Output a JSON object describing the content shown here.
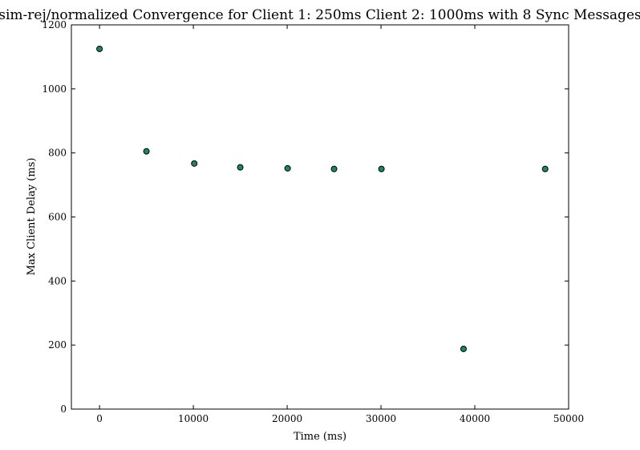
{
  "chart_data": {
    "type": "scatter",
    "title": "sim-rej/normalized Convergence for Client 1: 250ms Client 2: 1000ms with 8 Sync Messages",
    "xlabel": "Time (ms)",
    "ylabel": "Max Client Delay (ms)",
    "xlim": [
      -3000,
      50000
    ],
    "ylim": [
      0,
      1200
    ],
    "x_ticks": [
      "0",
      "10000",
      "20000",
      "30000",
      "40000",
      "50000"
    ],
    "y_ticks": [
      "0",
      "200",
      "400",
      "600",
      "800",
      "1000",
      "1200"
    ],
    "grid": false,
    "x": [
      0,
      5000,
      10100,
      15000,
      20050,
      25000,
      30050,
      38800,
      47500
    ],
    "y": [
      1125,
      805,
      767,
      755,
      752,
      750,
      750,
      188,
      750
    ],
    "point_color": "#1b8a5a",
    "point_edge_color": "#000000"
  }
}
